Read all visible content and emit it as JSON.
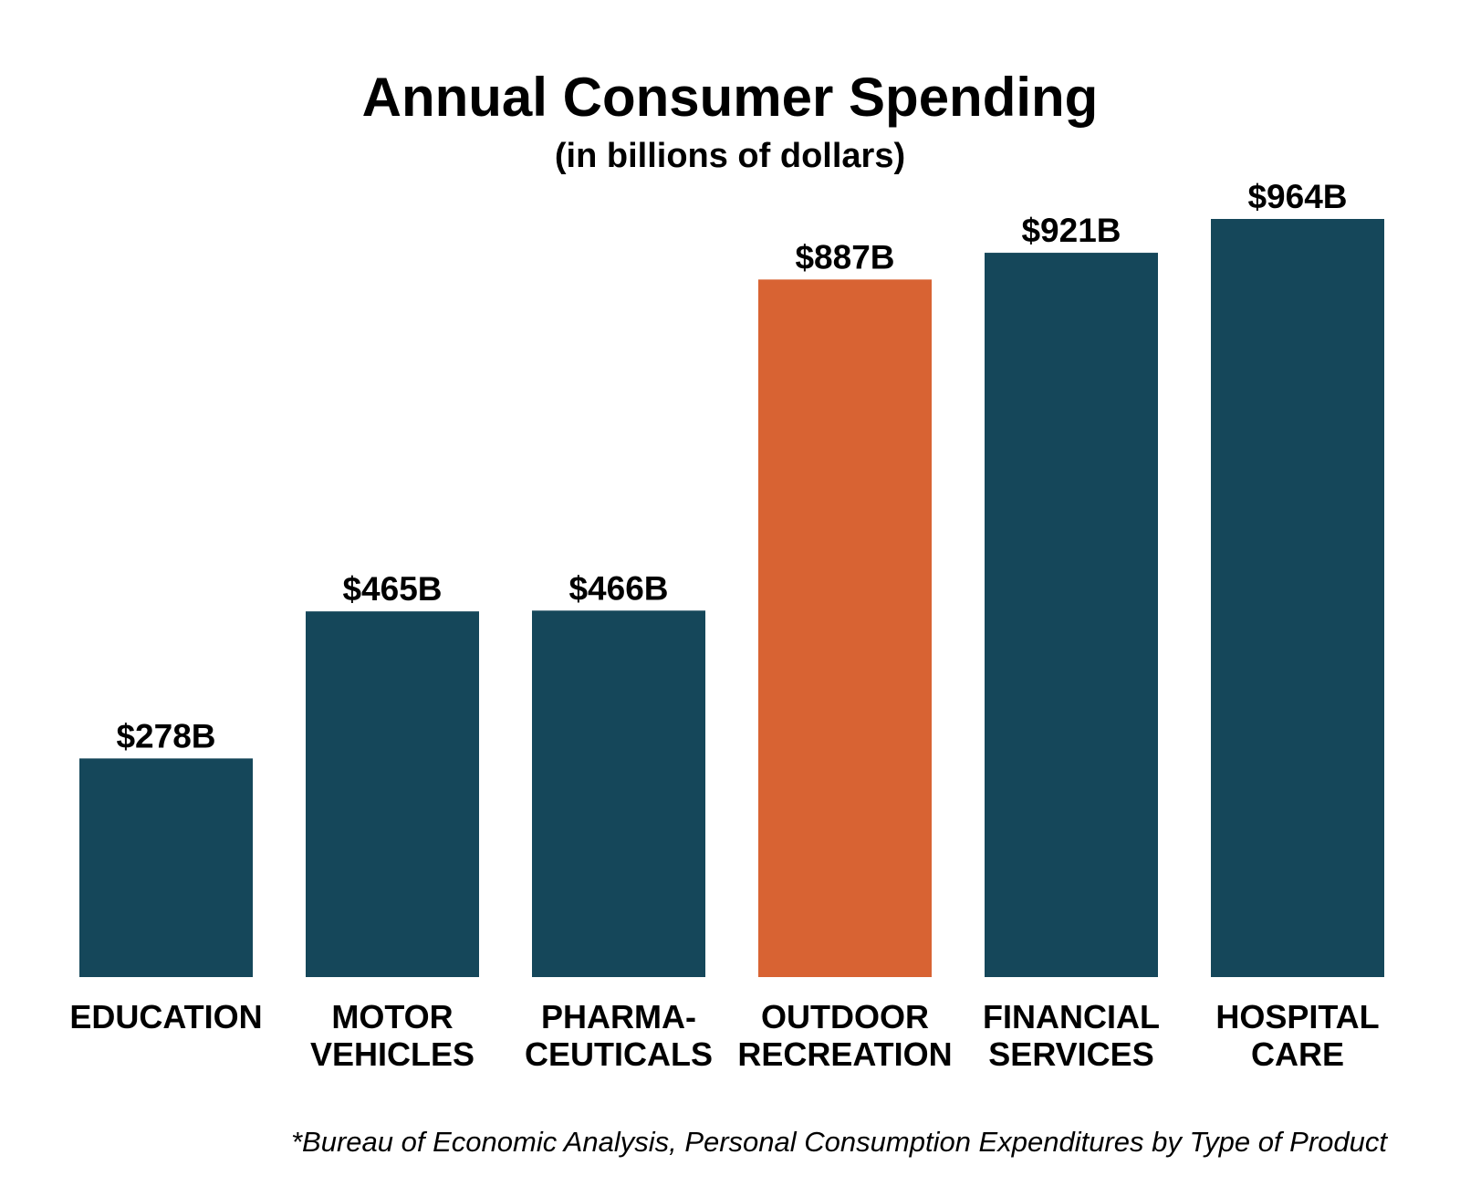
{
  "chart_data": {
    "type": "bar",
    "title": "Annual Consumer Spending",
    "subtitle": "(in billions of dollars)",
    "categories": [
      [
        "EDUCATION"
      ],
      [
        "MOTOR",
        "VEHICLES"
      ],
      [
        "PHARMA-",
        "CEUTICALS"
      ],
      [
        "OUTDOOR",
        "RECREATION"
      ],
      [
        "FINANCIAL",
        "SERVICES"
      ],
      [
        "HOSPITAL",
        "CARE"
      ]
    ],
    "values": [
      278,
      465,
      466,
      887,
      921,
      964
    ],
    "value_labels": [
      "$278B",
      "$465B",
      "$466B",
      "$887B",
      "$921B",
      "$964B"
    ],
    "highlight_index": 3,
    "ylim": [
      0,
      964
    ],
    "grid": false,
    "legend": "none",
    "xlabel": "",
    "ylabel": ""
  },
  "colors": {
    "bar": "#15475a",
    "highlight": "#d86333",
    "text": "#000000",
    "background": "#ffffff"
  },
  "footnote": "*Bureau of Economic Analysis, Personal Consumption Expenditures by Type of Product"
}
